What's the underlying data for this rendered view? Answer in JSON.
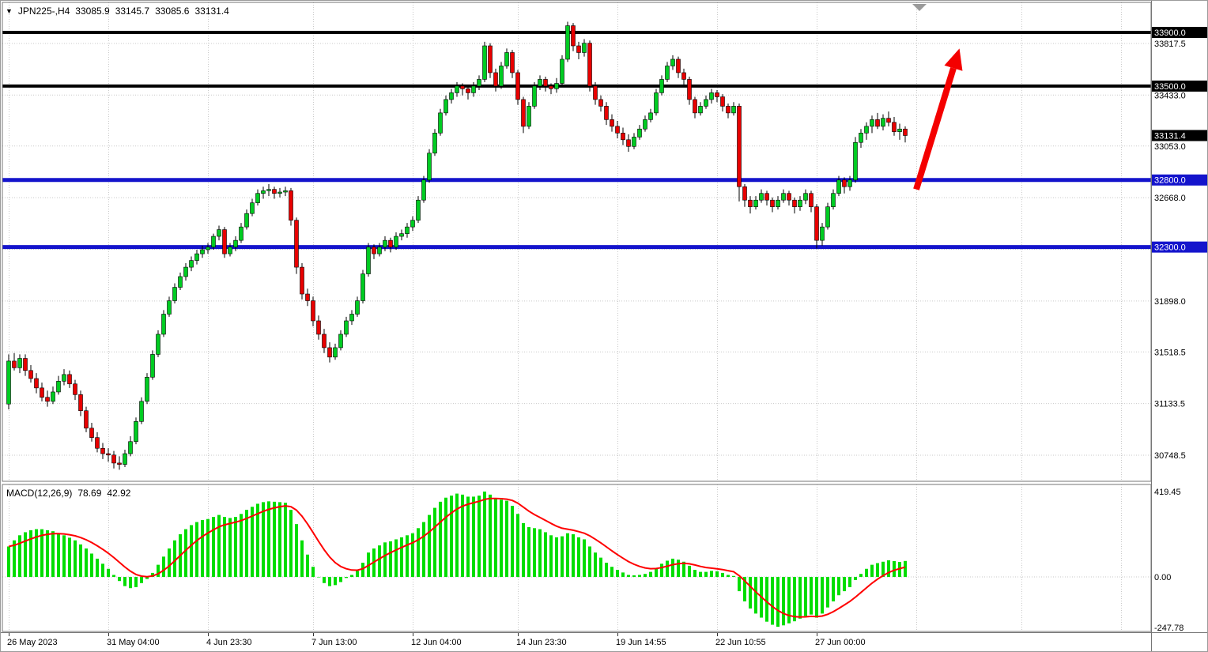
{
  "colors": {
    "background": "#FFFFFF",
    "grid_dotted": "#C9C9C9",
    "bull_candle": "#00CC22",
    "bear_candle": "#E80000",
    "candle_wick": "#000000",
    "panel_border": "#767676",
    "axis_text": "#000000",
    "current_price_bg": "#000000",
    "shift_marker": "#9A9A9A"
  },
  "chart_data": [
    {
      "type": "candlestick",
      "title": "JPN225-,H4",
      "symbol": "JPN225-",
      "timeframe": "H4",
      "last": {
        "open": 33085.9,
        "high": 33145.7,
        "low": 33085.6,
        "close": 33131.4
      },
      "ylim": [
        30554,
        34124
      ],
      "y_gridlines": [
        33817.5,
        33433.0,
        33053.0,
        32668.0,
        32283.5,
        31898.0,
        31518.5,
        31133.5,
        30748.5
      ],
      "y_axis_labels": [
        "33817.5",
        "33433.0",
        "33053.0",
        "32668.0",
        "31898.0",
        "31518.5",
        "31133.5",
        "30748.5"
      ],
      "levels": [
        {
          "value": 33900.0,
          "label": "33900.0",
          "color": "#000000",
          "width": 4
        },
        {
          "value": 33500.0,
          "label": "33500.0",
          "color": "#000000",
          "width": 4
        },
        {
          "value": 32800.0,
          "label": "32800.0",
          "color": "#1414CC",
          "width": 5
        },
        {
          "value": 32300.0,
          "label": "32300.0",
          "color": "#1414CC",
          "width": 5
        }
      ],
      "current_price": {
        "value": 33131.4,
        "label": "33131.4"
      },
      "x_labels": [
        {
          "i": 0,
          "text": "26 May 2023"
        },
        {
          "i": 18,
          "text": "31 May 04:00"
        },
        {
          "i": 36,
          "text": "4 Jun 23:30"
        },
        {
          "i": 55,
          "text": "7 Jun 13:00"
        },
        {
          "i": 73,
          "text": "12 Jun 04:00"
        },
        {
          "i": 92,
          "text": "14 Jun 23:30"
        },
        {
          "i": 110,
          "text": "19 Jun 14:55"
        },
        {
          "i": 128,
          "text": "22 Jun 10:55"
        },
        {
          "i": 146,
          "text": "27 Jun 00:00"
        }
      ],
      "annotations": [
        {
          "type": "arrow",
          "from": {
            "i": 164,
            "price": 32730
          },
          "to": {
            "i": 171.8,
            "price": 33780
          },
          "color": "#F40000"
        }
      ],
      "candles": [
        [
          31130,
          31500,
          31090,
          31450
        ],
        [
          31450,
          31510,
          31380,
          31400
        ],
        [
          31400,
          31500,
          31360,
          31470
        ],
        [
          31470,
          31500,
          31340,
          31380
        ],
        [
          31380,
          31420,
          31290,
          31320
        ],
        [
          31320,
          31360,
          31210,
          31250
        ],
        [
          31250,
          31290,
          31150,
          31180
        ],
        [
          31180,
          31230,
          31110,
          31150
        ],
        [
          31150,
          31260,
          31130,
          31220
        ],
        [
          31220,
          31340,
          31200,
          31300
        ],
        [
          31300,
          31390,
          31270,
          31350
        ],
        [
          31350,
          31380,
          31250,
          31280
        ],
        [
          31280,
          31310,
          31160,
          31200
        ],
        [
          31200,
          31230,
          31040,
          31080
        ],
        [
          31080,
          31110,
          30920,
          30950
        ],
        [
          30950,
          30990,
          30850,
          30880
        ],
        [
          30880,
          30920,
          30770,
          30800
        ],
        [
          30800,
          30840,
          30720,
          30760
        ],
        [
          30760,
          30800,
          30700,
          30750
        ],
        [
          30750,
          30780,
          30650,
          30690
        ],
        [
          30690,
          30740,
          30640,
          30680
        ],
        [
          30680,
          30790,
          30660,
          30760
        ],
        [
          30760,
          30890,
          30740,
          30850
        ],
        [
          30850,
          31030,
          30830,
          31000
        ],
        [
          31000,
          31180,
          30980,
          31150
        ],
        [
          31150,
          31360,
          31130,
          31330
        ],
        [
          31330,
          31530,
          31310,
          31500
        ],
        [
          31500,
          31680,
          31480,
          31650
        ],
        [
          31650,
          31830,
          31630,
          31800
        ],
        [
          31800,
          31930,
          31780,
          31900
        ],
        [
          31900,
          32030,
          31880,
          32000
        ],
        [
          32000,
          32110,
          31980,
          32080
        ],
        [
          32080,
          32180,
          32050,
          32150
        ],
        [
          32150,
          32230,
          32120,
          32200
        ],
        [
          32200,
          32280,
          32170,
          32250
        ],
        [
          32250,
          32310,
          32220,
          32280
        ],
        [
          32280,
          32330,
          32250,
          32300
        ],
        [
          32300,
          32400,
          32280,
          32380
        ],
        [
          32380,
          32460,
          32350,
          32430
        ],
        [
          32430,
          32450,
          32220,
          32250
        ],
        [
          32250,
          32330,
          32230,
          32300
        ],
        [
          32300,
          32380,
          32270,
          32350
        ],
        [
          32350,
          32480,
          32330,
          32450
        ],
        [
          32450,
          32580,
          32430,
          32550
        ],
        [
          32550,
          32660,
          32530,
          32630
        ],
        [
          32630,
          32730,
          32610,
          32700
        ],
        [
          32700,
          32750,
          32660,
          32720
        ],
        [
          32720,
          32770,
          32680,
          32730
        ],
        [
          32730,
          32750,
          32660,
          32700
        ],
        [
          32700,
          32740,
          32670,
          32710
        ],
        [
          32710,
          32750,
          32680,
          32720
        ],
        [
          32720,
          32740,
          32460,
          32500
        ],
        [
          32500,
          32520,
          32100,
          32150
        ],
        [
          32150,
          32180,
          31910,
          31950
        ],
        [
          31950,
          31990,
          31860,
          31900
        ],
        [
          31900,
          31930,
          31710,
          31750
        ],
        [
          31750,
          31790,
          31610,
          31650
        ],
        [
          31650,
          31690,
          31510,
          31550
        ],
        [
          31550,
          31590,
          31440,
          31480
        ],
        [
          31480,
          31580,
          31460,
          31550
        ],
        [
          31550,
          31680,
          31530,
          31650
        ],
        [
          31650,
          31780,
          31630,
          31750
        ],
        [
          31750,
          31830,
          31720,
          31800
        ],
        [
          31800,
          31930,
          31780,
          31900
        ],
        [
          31900,
          32130,
          31880,
          32100
        ],
        [
          32100,
          32330,
          32080,
          32300
        ],
        [
          32300,
          32320,
          32210,
          32250
        ],
        [
          32250,
          32330,
          32230,
          32300
        ],
        [
          32300,
          32380,
          32270,
          32350
        ],
        [
          32350,
          32370,
          32260,
          32300
        ],
        [
          32300,
          32410,
          32280,
          32380
        ],
        [
          32380,
          32430,
          32350,
          32400
        ],
        [
          32400,
          32480,
          32370,
          32450
        ],
        [
          32450,
          32530,
          32420,
          32500
        ],
        [
          32500,
          32680,
          32480,
          32650
        ],
        [
          32650,
          32830,
          32630,
          32800
        ],
        [
          32800,
          33030,
          32780,
          33000
        ],
        [
          33000,
          33180,
          32980,
          33150
        ],
        [
          33150,
          33330,
          33130,
          33300
        ],
        [
          33300,
          33430,
          33280,
          33400
        ],
        [
          33400,
          33480,
          33370,
          33450
        ],
        [
          33450,
          33530,
          33420,
          33500
        ],
        [
          33500,
          33520,
          33430,
          33480
        ],
        [
          33480,
          33500,
          33400,
          33450
        ],
        [
          33450,
          33530,
          33420,
          33500
        ],
        [
          33500,
          33580,
          33470,
          33550
        ],
        [
          33550,
          33830,
          33530,
          33800
        ],
        [
          33800,
          33820,
          33560,
          33600
        ],
        [
          33600,
          33630,
          33460,
          33500
        ],
        [
          33500,
          33680,
          33480,
          33650
        ],
        [
          33650,
          33780,
          33630,
          33750
        ],
        [
          33750,
          33770,
          33560,
          33600
        ],
        [
          33600,
          33620,
          33360,
          33400
        ],
        [
          33400,
          33420,
          33150,
          33200
        ],
        [
          33200,
          33380,
          33180,
          33350
        ],
        [
          33350,
          33530,
          33330,
          33500
        ],
        [
          33500,
          33580,
          33470,
          33550
        ],
        [
          33550,
          33570,
          33460,
          33500
        ],
        [
          33500,
          33520,
          33440,
          33480
        ],
        [
          33480,
          33560,
          33450,
          33520
        ],
        [
          33520,
          33730,
          33500,
          33700
        ],
        [
          33700,
          33980,
          33680,
          33950
        ],
        [
          33950,
          33970,
          33760,
          33800
        ],
        [
          33800,
          33830,
          33700,
          33750
        ],
        [
          33750,
          33850,
          33720,
          33820
        ],
        [
          33820,
          33840,
          33460,
          33500
        ],
        [
          33500,
          33530,
          33360,
          33400
        ],
        [
          33400,
          33430,
          33310,
          33350
        ],
        [
          33350,
          33380,
          33210,
          33250
        ],
        [
          33250,
          33290,
          33160,
          33200
        ],
        [
          33200,
          33240,
          33110,
          33150
        ],
        [
          33150,
          33190,
          33060,
          33100
        ],
        [
          33100,
          33140,
          33010,
          33050
        ],
        [
          33050,
          33150,
          33030,
          33120
        ],
        [
          33120,
          33210,
          33100,
          33180
        ],
        [
          33180,
          33280,
          33160,
          33250
        ],
        [
          33250,
          33330,
          33230,
          33300
        ],
        [
          33300,
          33480,
          33280,
          33450
        ],
        [
          33450,
          33580,
          33430,
          33550
        ],
        [
          33550,
          33680,
          33530,
          33650
        ],
        [
          33650,
          33730,
          33620,
          33700
        ],
        [
          33700,
          33720,
          33560,
          33600
        ],
        [
          33600,
          33630,
          33510,
          33550
        ],
        [
          33550,
          33570,
          33360,
          33400
        ],
        [
          33400,
          33420,
          33260,
          33300
        ],
        [
          33300,
          33380,
          33280,
          33350
        ],
        [
          33350,
          33430,
          33330,
          33400
        ],
        [
          33400,
          33480,
          33370,
          33450
        ],
        [
          33450,
          33470,
          33380,
          33420
        ],
        [
          33420,
          33440,
          33310,
          33350
        ],
        [
          33350,
          33370,
          33260,
          33300
        ],
        [
          33300,
          33380,
          33280,
          33350
        ],
        [
          33350,
          33370,
          32640,
          32750
        ],
        [
          32750,
          32770,
          32600,
          32650
        ],
        [
          32650,
          32680,
          32550,
          32600
        ],
        [
          32600,
          32680,
          32580,
          32650
        ],
        [
          32650,
          32730,
          32630,
          32700
        ],
        [
          32700,
          32720,
          32610,
          32650
        ],
        [
          32650,
          32670,
          32560,
          32600
        ],
        [
          32600,
          32680,
          32580,
          32650
        ],
        [
          32650,
          32730,
          32630,
          32700
        ],
        [
          32700,
          32720,
          32610,
          32650
        ],
        [
          32650,
          32670,
          32550,
          32600
        ],
        [
          32600,
          32680,
          32570,
          32650
        ],
        [
          32650,
          32730,
          32620,
          32700
        ],
        [
          32700,
          32720,
          32560,
          32600
        ],
        [
          32600,
          32620,
          32290,
          32350
        ],
        [
          32350,
          32480,
          32310,
          32450
        ],
        [
          32450,
          32630,
          32430,
          32600
        ],
        [
          32600,
          32730,
          32580,
          32700
        ],
        [
          32700,
          32830,
          32680,
          32800
        ],
        [
          32800,
          32820,
          32700,
          32750
        ],
        [
          32750,
          32830,
          32720,
          32800
        ],
        [
          32800,
          33120,
          32780,
          33080
        ],
        [
          33080,
          33180,
          33040,
          33150
        ],
        [
          33150,
          33230,
          33100,
          33200
        ],
        [
          33200,
          33280,
          33150,
          33250
        ],
        [
          33250,
          33300,
          33180,
          33200
        ],
        [
          33200,
          33290,
          33170,
          33260
        ],
        [
          33260,
          33310,
          33200,
          33230
        ],
        [
          33230,
          33270,
          33130,
          33160
        ],
        [
          33160,
          33220,
          33100,
          33180
        ],
        [
          33180,
          33200,
          33080,
          33131.4
        ]
      ]
    },
    {
      "type": "bar",
      "title": "MACD(12,26,9)",
      "readout": {
        "macd": "78.69",
        "signal": "42.92"
      },
      "ylim": [
        -268,
        455
      ],
      "signal_period": 9,
      "colors": {
        "histogram": "#00DD00",
        "signal": "#FF0000"
      },
      "y_axis_labels": [
        {
          "value": 419.45,
          "text": "419.45"
        },
        {
          "value": 0,
          "text": "0.00"
        },
        {
          "value": -247.78,
          "text": "-247.78"
        }
      ],
      "histogram": [
        150,
        180,
        205,
        220,
        230,
        235,
        235,
        230,
        225,
        215,
        205,
        193,
        180,
        160,
        140,
        115,
        90,
        65,
        40,
        10,
        -20,
        -45,
        -55,
        -50,
        -30,
        -10,
        20,
        60,
        100,
        140,
        180,
        210,
        235,
        255,
        270,
        280,
        285,
        295,
        305,
        295,
        290,
        295,
        310,
        330,
        345,
        360,
        368,
        372,
        370,
        368,
        365,
        330,
        260,
        180,
        110,
        50,
        0,
        -30,
        -45,
        -40,
        -25,
        -5,
        10,
        30,
        70,
        120,
        140,
        155,
        170,
        175,
        185,
        195,
        205,
        215,
        240,
        270,
        305,
        340,
        370,
        390,
        400,
        410,
        405,
        395,
        395,
        400,
        420,
        405,
        385,
        380,
        375,
        350,
        310,
        265,
        245,
        240,
        235,
        220,
        205,
        195,
        200,
        215,
        210,
        195,
        185,
        150,
        120,
        95,
        70,
        50,
        35,
        22,
        10,
        8,
        10,
        15,
        25,
        45,
        65,
        80,
        90,
        85,
        75,
        55,
        35,
        25,
        25,
        30,
        28,
        20,
        10,
        5,
        -70,
        -120,
        -155,
        -180,
        -200,
        -220,
        -235,
        -245,
        -238,
        -228,
        -218,
        -205,
        -192,
        -185,
        -200,
        -180,
        -150,
        -120,
        -90,
        -70,
        -50,
        -15,
        15,
        40,
        60,
        68,
        75,
        82,
        78,
        74,
        78.69
      ]
    }
  ]
}
